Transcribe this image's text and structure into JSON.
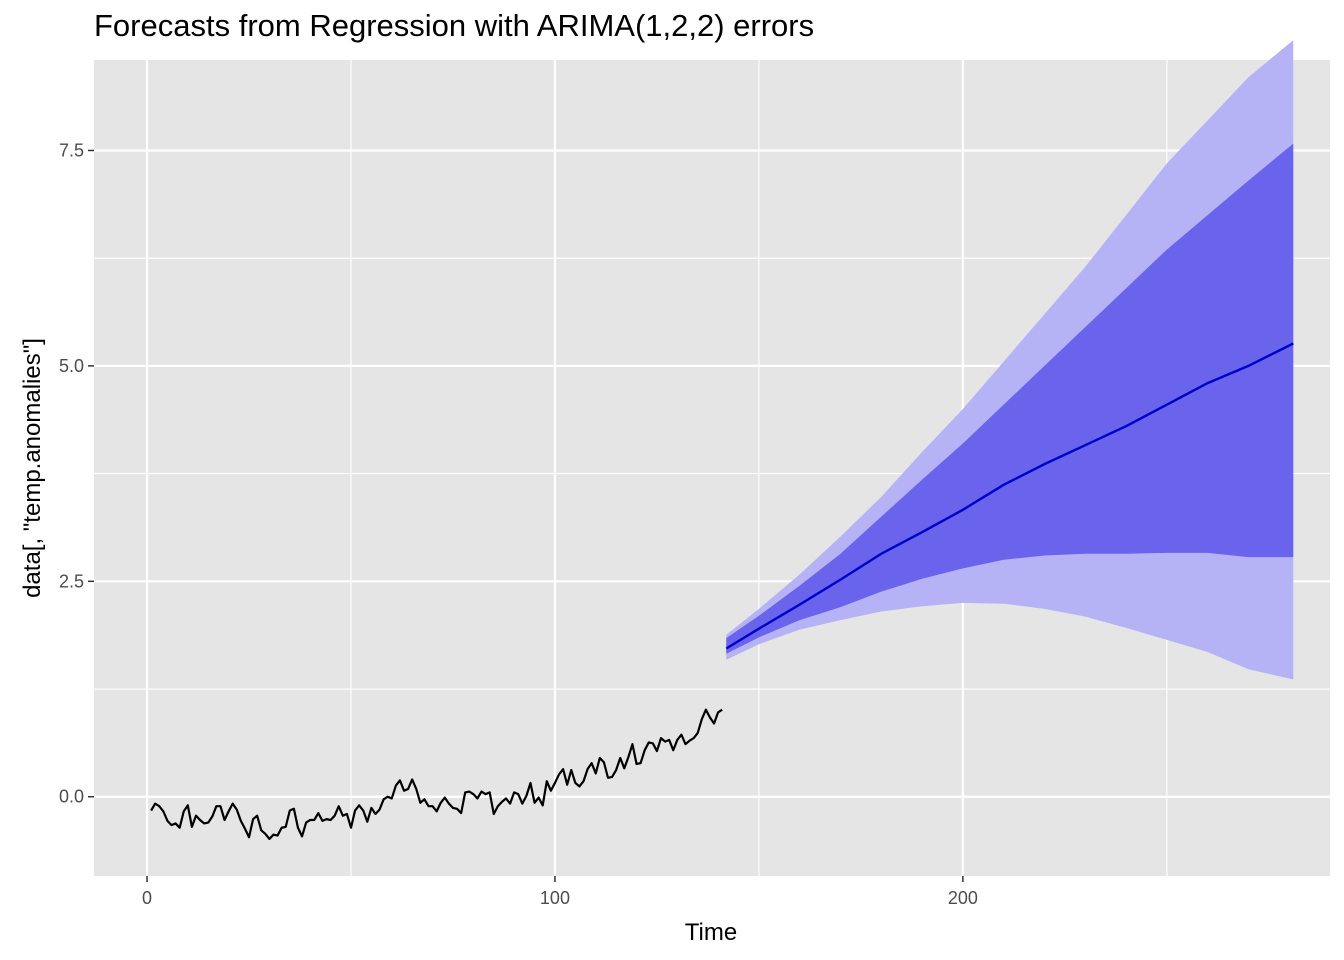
{
  "chart_data": {
    "type": "line",
    "title": "Forecasts from Regression with ARIMA(1,2,2) errors",
    "xlabel": "Time",
    "ylabel": "data[, \"temp.anomalies\"]",
    "xlim": [
      -13,
      290
    ],
    "ylim": [
      -0.92,
      8.55
    ],
    "x_ticks": [
      0,
      100,
      200
    ],
    "x_tick_labels": [
      "0",
      "100",
      "200"
    ],
    "y_ticks": [
      0,
      2.5,
      5,
      7.5
    ],
    "y_tick_labels": [
      "0.0",
      "2.5",
      "5.0",
      "7.5"
    ],
    "grid": true,
    "colors": {
      "panel": "#e5e5e5",
      "grid": "#ffffff",
      "observed": "#000000",
      "forecast_line": "#0000cc",
      "band_80": "#6a63eb",
      "band_95": "#b5b3f5"
    },
    "series": [
      {
        "name": "",
        "role": "observed",
        "x": [
          1,
          2,
          3,
          4,
          5,
          6,
          7,
          8,
          9,
          10,
          11,
          12,
          13,
          14,
          15,
          16,
          17,
          18,
          19,
          20,
          21,
          22,
          23,
          24,
          25,
          26,
          27,
          28,
          29,
          30,
          31,
          32,
          33,
          34,
          35,
          36,
          37,
          38,
          39,
          40,
          41,
          42,
          43,
          44,
          45,
          46,
          47,
          48,
          49,
          50,
          51,
          52,
          53,
          54,
          55,
          56,
          57,
          58,
          59,
          60,
          61,
          62,
          63,
          64,
          65,
          66,
          67,
          68,
          69,
          70,
          71,
          72,
          73,
          74,
          75,
          76,
          77,
          78,
          79,
          80,
          81,
          82,
          83,
          84,
          85,
          86,
          87,
          88,
          89,
          90,
          91,
          92,
          93,
          94,
          95,
          96,
          97,
          98,
          99,
          100,
          101,
          102,
          103,
          104,
          105,
          106,
          107,
          108,
          109,
          110,
          111,
          112,
          113,
          114,
          115,
          116,
          117,
          118,
          119,
          120,
          121,
          122,
          123,
          124,
          125,
          126,
          127,
          128,
          129,
          130,
          131,
          132,
          133,
          134,
          135,
          136,
          137,
          138,
          139,
          140,
          141
        ],
        "y": [
          -0.16,
          -0.08,
          -0.11,
          -0.17,
          -0.28,
          -0.33,
          -0.31,
          -0.36,
          -0.17,
          -0.1,
          -0.35,
          -0.22,
          -0.27,
          -0.31,
          -0.3,
          -0.23,
          -0.11,
          -0.11,
          -0.27,
          -0.17,
          -0.08,
          -0.15,
          -0.28,
          -0.37,
          -0.47,
          -0.26,
          -0.22,
          -0.39,
          -0.43,
          -0.49,
          -0.44,
          -0.45,
          -0.36,
          -0.35,
          -0.16,
          -0.14,
          -0.36,
          -0.46,
          -0.3,
          -0.27,
          -0.27,
          -0.19,
          -0.28,
          -0.26,
          -0.27,
          -0.22,
          -0.11,
          -0.22,
          -0.2,
          -0.36,
          -0.16,
          -0.1,
          -0.16,
          -0.29,
          -0.13,
          -0.2,
          -0.15,
          -0.03,
          0.0,
          -0.02,
          0.13,
          0.19,
          0.07,
          0.09,
          0.2,
          0.09,
          -0.07,
          -0.03,
          -0.11,
          -0.11,
          -0.17,
          -0.07,
          -0.01,
          -0.08,
          -0.13,
          -0.14,
          -0.19,
          0.05,
          0.06,
          0.03,
          -0.02,
          0.06,
          0.03,
          0.05,
          -0.2,
          -0.11,
          -0.06,
          -0.02,
          -0.08,
          0.05,
          0.03,
          -0.08,
          0.01,
          0.16,
          -0.07,
          -0.01,
          -0.1,
          0.18,
          0.07,
          0.16,
          0.26,
          0.32,
          0.14,
          0.31,
          0.16,
          0.12,
          0.18,
          0.32,
          0.39,
          0.27,
          0.45,
          0.4,
          0.22,
          0.23,
          0.31,
          0.45,
          0.33,
          0.46,
          0.61,
          0.38,
          0.39,
          0.54,
          0.63,
          0.62,
          0.53,
          0.68,
          0.64,
          0.66,
          0.54,
          0.66,
          0.72,
          0.61,
          0.65,
          0.68,
          0.74,
          0.9,
          1.01,
          0.92,
          0.85,
          0.98,
          1.01
        ]
      },
      {
        "name": "",
        "role": "forecast",
        "x": [
          142,
          150,
          160,
          170,
          180,
          190,
          200,
          210,
          220,
          230,
          240,
          250,
          260,
          270,
          281
        ],
        "y": [
          1.72,
          1.95,
          2.23,
          2.52,
          2.82,
          3.07,
          3.33,
          3.62,
          3.86,
          4.08,
          4.3,
          4.55,
          4.8,
          5.0,
          5.26
        ],
        "lo80": [
          1.66,
          1.85,
          2.05,
          2.2,
          2.38,
          2.53,
          2.65,
          2.75,
          2.8,
          2.82,
          2.82,
          2.83,
          2.83,
          2.78,
          2.78
        ],
        "hi80": [
          1.84,
          2.1,
          2.45,
          2.82,
          3.25,
          3.68,
          4.1,
          4.55,
          5.0,
          5.45,
          5.9,
          6.35,
          6.75,
          7.15,
          7.58
        ],
        "lo95": [
          1.59,
          1.77,
          1.94,
          2.05,
          2.15,
          2.21,
          2.25,
          2.24,
          2.18,
          2.09,
          1.96,
          1.82,
          1.68,
          1.48,
          1.36
        ],
        "hi95": [
          1.88,
          2.18,
          2.58,
          3.02,
          3.48,
          4.0,
          4.5,
          5.05,
          5.6,
          6.15,
          6.75,
          7.35,
          7.85,
          8.35,
          8.78
        ]
      }
    ]
  }
}
